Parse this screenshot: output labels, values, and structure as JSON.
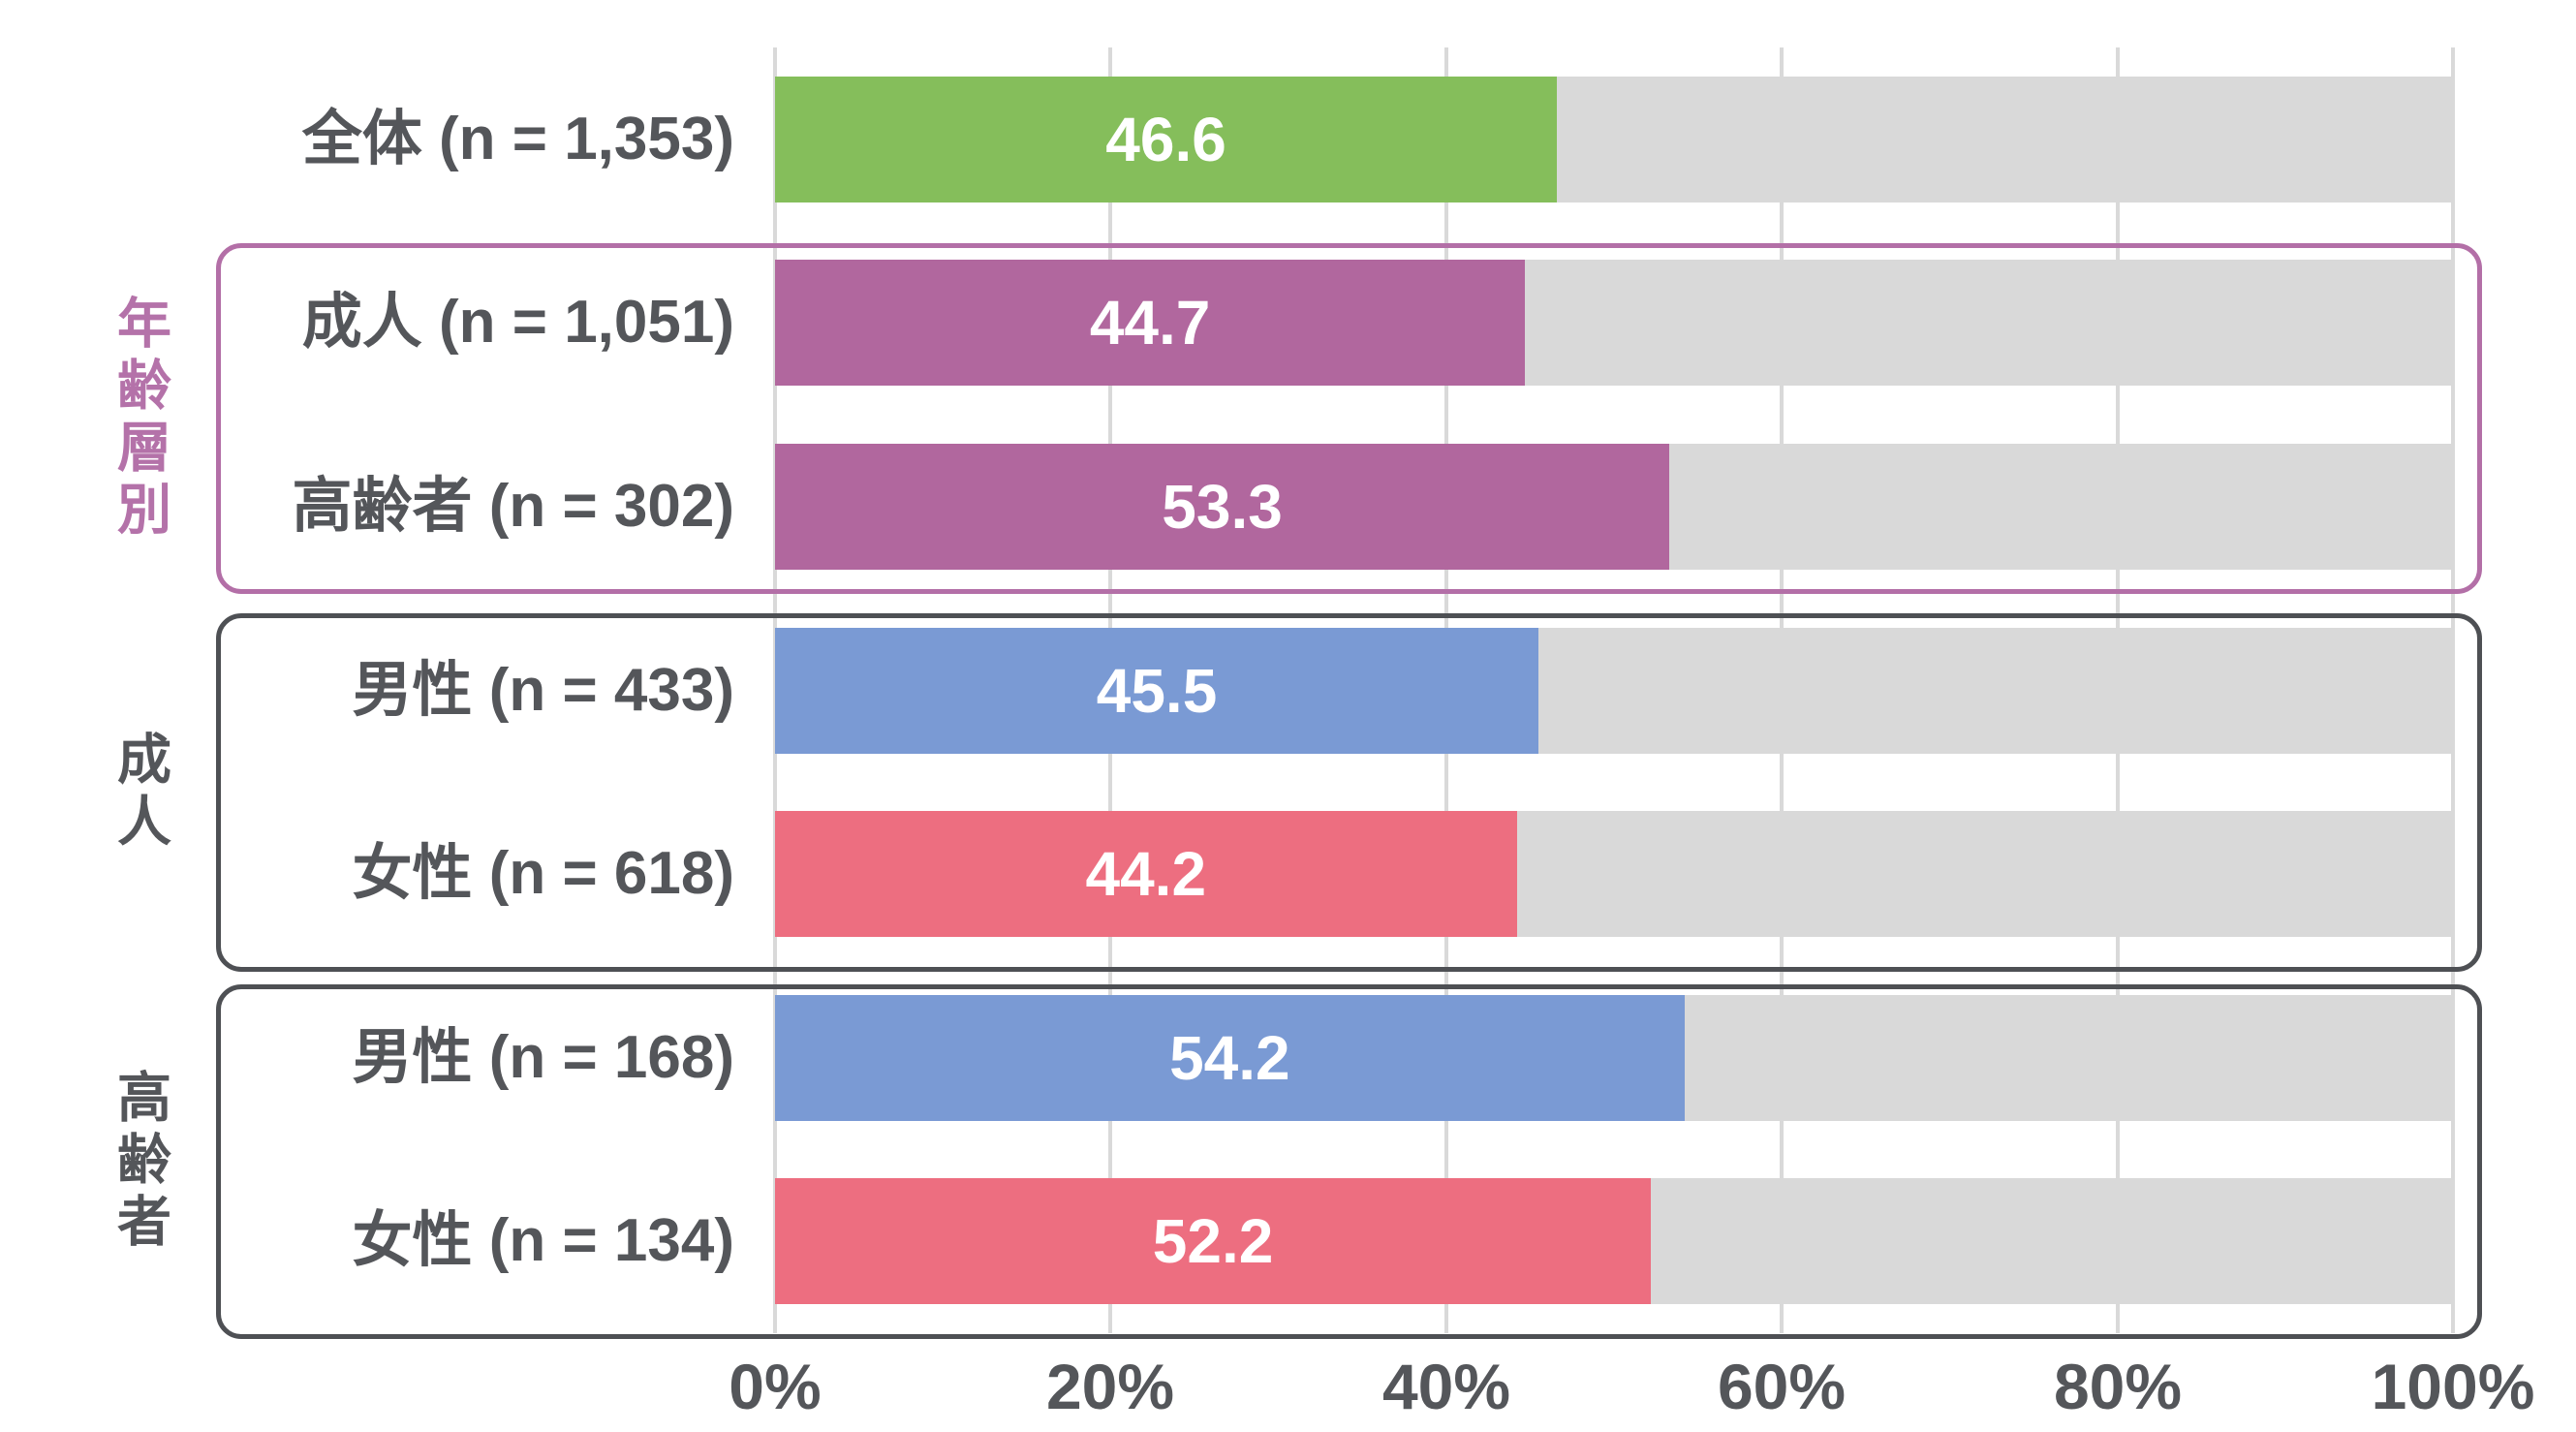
{
  "chart_data": {
    "type": "bar",
    "orientation": "horizontal",
    "title": "",
    "xlabel": "",
    "ylabel": "",
    "xlim": [
      0,
      100
    ],
    "x_ticks": [
      "0%",
      "20%",
      "40%",
      "60%",
      "80%",
      "100%"
    ],
    "grid": "vertical",
    "track_color": "#D9D9D9",
    "gridline_color": "#D9D9D9",
    "background_color": "#FFFFFF",
    "value_label_color": "#FFFFFF",
    "category_label_color": "#54565A",
    "rows": [
      {
        "label": "全体 (n = 1,353)",
        "value": 46.6,
        "value_label": "46.6",
        "color": "#85BE5B"
      },
      {
        "label": "成人 (n = 1,051)",
        "value": 44.7,
        "value_label": "44.7",
        "color": "#B1679E"
      },
      {
        "label": "高齢者 (n = 302)",
        "value": 53.3,
        "value_label": "53.3",
        "color": "#B1679E"
      },
      {
        "label": "男性 (n = 433)",
        "value": 45.5,
        "value_label": "45.5",
        "color": "#7A9AD4"
      },
      {
        "label": "女性 (n = 618)",
        "value": 44.2,
        "value_label": "44.2",
        "color": "#ED6E80"
      },
      {
        "label": "男性 (n = 168)",
        "value": 54.2,
        "value_label": "54.2",
        "color": "#7A9AD4"
      },
      {
        "label": "女性 (n = 134)",
        "value": 52.2,
        "value_label": "52.2",
        "color": "#ED6E80"
      }
    ],
    "groups": [
      {
        "label": "年齢層別",
        "row_indexes": [
          1,
          2
        ],
        "border_color": "#B36FA7",
        "label_color": "#B472A9"
      },
      {
        "label": "成人",
        "row_indexes": [
          3,
          4
        ],
        "border_color": "#4E5054",
        "label_color": "#54565A"
      },
      {
        "label": "高齢者",
        "row_indexes": [
          5,
          6
        ],
        "border_color": "#4E5054",
        "label_color": "#54565A"
      }
    ]
  }
}
